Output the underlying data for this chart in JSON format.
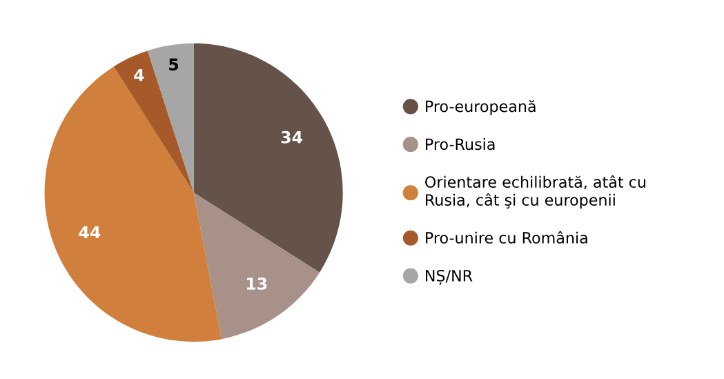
{
  "chart_data": {
    "type": "pie",
    "categories": [
      "Pro-europeană",
      "Pro-Rusia",
      "Orientare echilibrată, atât cu\nRusia, cât şi cu europenii",
      "Pro-unire cu România",
      "NȘ/NR"
    ],
    "values": [
      34,
      13,
      44,
      4,
      5
    ],
    "colors": [
      "#655249",
      "#a89189",
      "#d07f3c",
      "#a65a2a",
      "#a6a6a6"
    ],
    "data_labels": true,
    "legend": "right"
  }
}
